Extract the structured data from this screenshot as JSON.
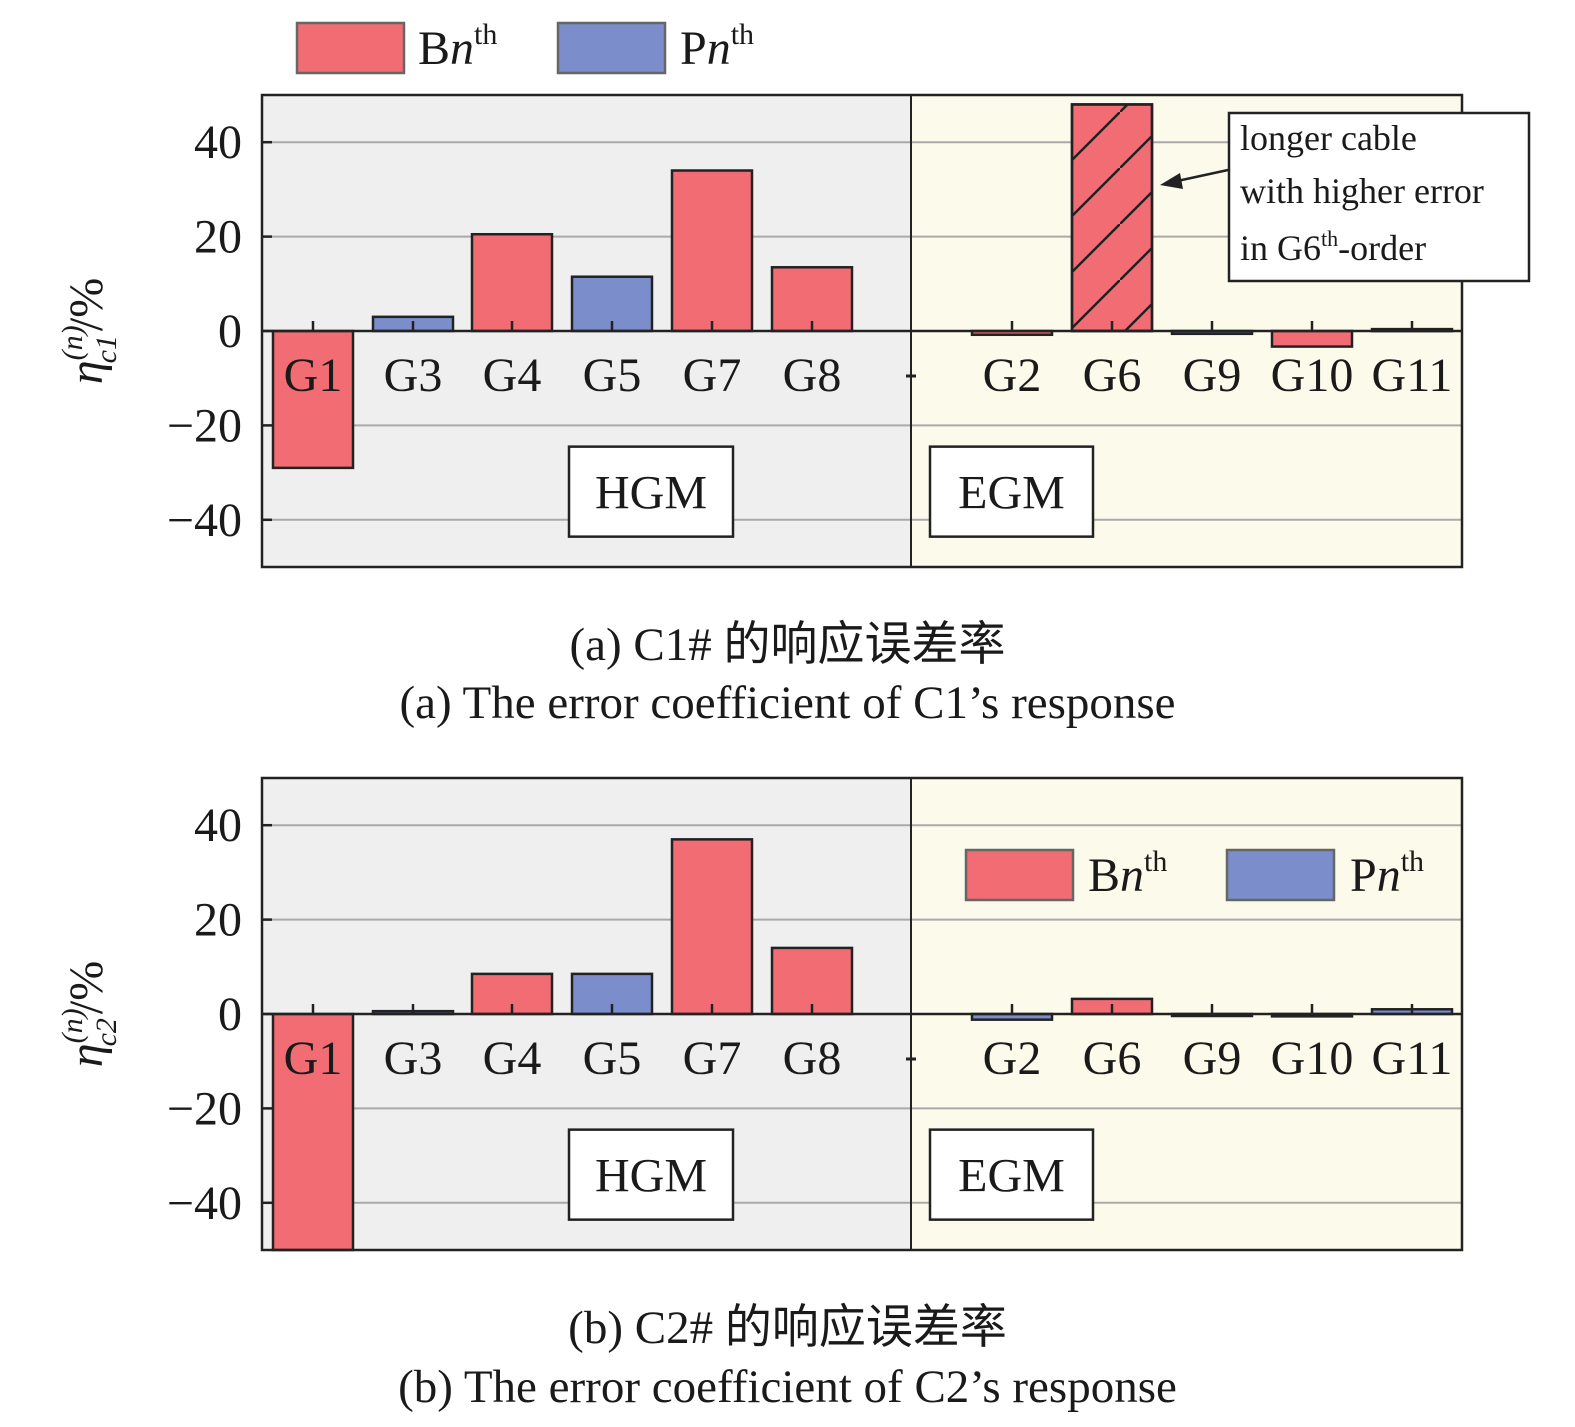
{
  "legend": {
    "b_label": "B",
    "p_label": "P",
    "order_symbol": "n",
    "order_suffix": "th"
  },
  "colors": {
    "B": "#f26c74",
    "P": "#7b8ecb",
    "hgm_bg": "#efefef",
    "egm_bg": "#fbfaeb",
    "grid": "#aaaaaa"
  },
  "chart_data": [
    {
      "type": "bar",
      "panel": "a",
      "ylabel": {
        "symbol": "η",
        "sup": "(n)",
        "sub": "c1",
        "unit": "/%"
      },
      "ylim": [
        -50,
        50
      ],
      "yticks": [
        40,
        20,
        0,
        -20,
        -40
      ],
      "ytick_labels": [
        "40",
        "20",
        "0",
        "−20",
        "−40"
      ],
      "grid": true,
      "legend_position": "above-left",
      "groups": [
        {
          "name": "HGM",
          "categories": [
            "G1",
            "G3",
            "G4",
            "G5",
            "G7",
            "G8"
          ],
          "values": [
            -29,
            3,
            20.5,
            11.5,
            34,
            13.5
          ],
          "types": [
            "B",
            "P",
            "B",
            "P",
            "B",
            "B"
          ]
        },
        {
          "name": "EGM",
          "categories": [
            "G2",
            "G6",
            "G9",
            "G10",
            "G11"
          ],
          "values": [
            -0.8,
            48,
            -0.6,
            -3.3,
            0.4
          ],
          "types": [
            "B",
            "B",
            "P",
            "B",
            "P"
          ],
          "hatched": [
            false,
            true,
            false,
            false,
            false
          ]
        }
      ],
      "annotation": {
        "lines": [
          "longer cable",
          "with higher error",
          "in G6"
        ],
        "sup": "th",
        "tail": "-order"
      },
      "caption_zh": "(a) C1# 的响应误差率",
      "caption_en": "(a) The error coefficient of C1’s response"
    },
    {
      "type": "bar",
      "panel": "b",
      "ylabel": {
        "symbol": "η",
        "sup": "(n)",
        "sub": "c2",
        "unit": "/%"
      },
      "ylim": [
        -50,
        50
      ],
      "yticks": [
        40,
        20,
        0,
        -20,
        -40
      ],
      "ytick_labels": [
        "40",
        "20",
        "0",
        "−20",
        "−40"
      ],
      "grid": true,
      "legend_position": "inside-right",
      "groups": [
        {
          "name": "HGM",
          "categories": [
            "G1",
            "G3",
            "G4",
            "G5",
            "G7",
            "G8"
          ],
          "values": [
            -50,
            0.6,
            8.5,
            8.5,
            37,
            14
          ],
          "types": [
            "B",
            "P",
            "B",
            "P",
            "B",
            "B"
          ]
        },
        {
          "name": "EGM",
          "categories": [
            "G2",
            "G6",
            "G9",
            "G10",
            "G11"
          ],
          "values": [
            -1.2,
            3.2,
            0,
            -0.5,
            1
          ],
          "types": [
            "P",
            "B",
            "P",
            "P",
            "P"
          ],
          "hatched": [
            false,
            false,
            false,
            false,
            false
          ]
        }
      ],
      "caption_zh": "(b) C2# 的响应误差率",
      "caption_en": "(b) The error coefficient of C2’s response"
    }
  ]
}
